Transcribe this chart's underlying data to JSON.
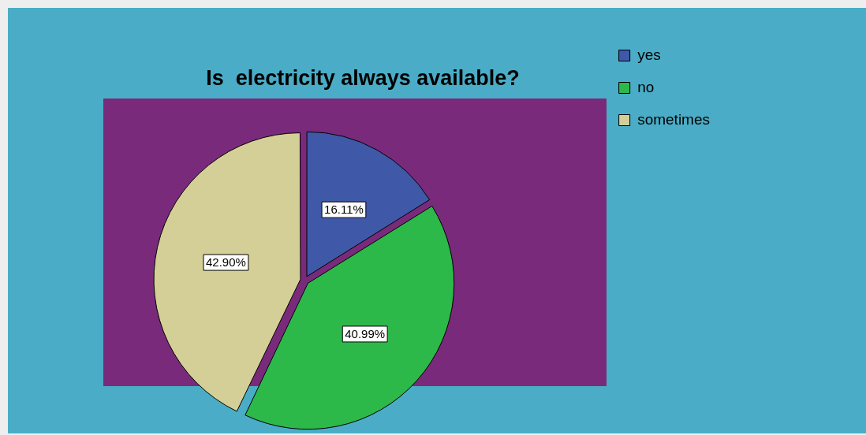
{
  "chart_data": {
    "type": "pie",
    "title": "Is  electricity always available?",
    "categories": [
      "yes",
      "no",
      "sometimes"
    ],
    "values": [
      16.11,
      40.99,
      42.9
    ],
    "colors": [
      "#3f59a8",
      "#2db84a",
      "#d3cf97"
    ],
    "value_labels": [
      "16.11%",
      "40.99%",
      "42.90%"
    ],
    "legend": "right"
  }
}
